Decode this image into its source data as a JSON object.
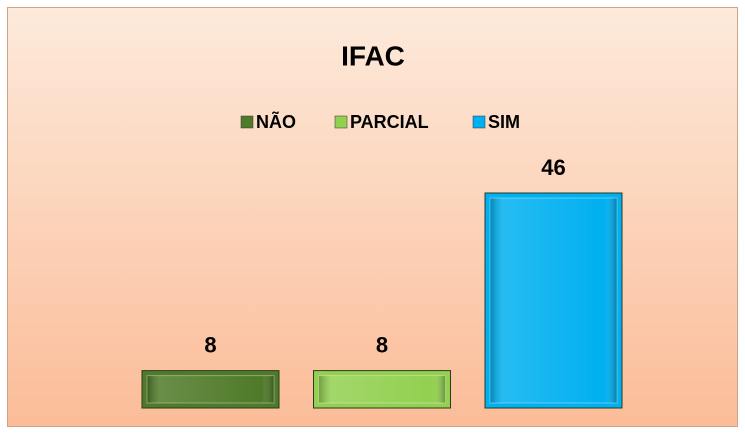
{
  "chart_data": {
    "type": "bar",
    "title": "IFAC",
    "categories": [
      null
    ],
    "series": [
      {
        "name": "NÃO",
        "color": "#4f7a28",
        "values": [
          8
        ]
      },
      {
        "name": "PARCIAL",
        "color": "#92d050",
        "values": [
          8
        ]
      },
      {
        "name": "SIM",
        "color": "#00b0f0",
        "values": [
          46
        ]
      }
    ],
    "legend": "top",
    "data_labels": true
  }
}
